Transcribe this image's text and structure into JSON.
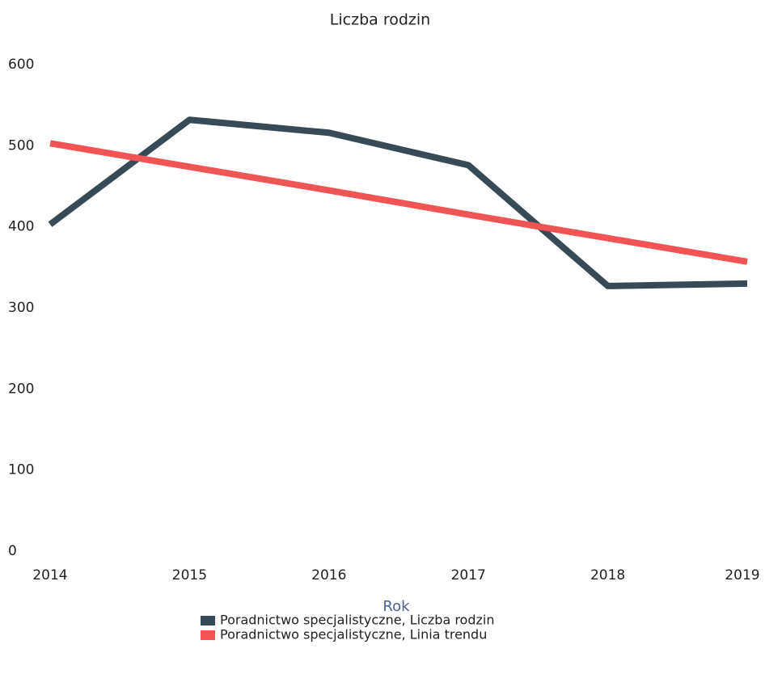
{
  "chart_data": {
    "type": "line",
    "title": "Liczba rodzin",
    "x_label": "Rok",
    "x": [
      2014,
      2015,
      2016,
      2017,
      2018,
      2019
    ],
    "xlim": [
      2014,
      2019
    ],
    "xticks": [
      2014,
      2015,
      2016,
      2017,
      2018,
      2019
    ],
    "ylim": [
      0,
      600
    ],
    "yticks": [
      0,
      100,
      200,
      300,
      400,
      500,
      600
    ],
    "grid": false,
    "legend": "bottom",
    "series": [
      {
        "name": "Poradnictwo specjalistyczne, Liczba rodzin",
        "color": "#374a56",
        "values": [
          403,
          532,
          516,
          476,
          327,
          330
        ]
      },
      {
        "name": "Poradnictwo specjalistyczne, Linia trendu",
        "color": "#f05454",
        "values": [
          503,
          474,
          445,
          415,
          386,
          357
        ]
      }
    ]
  }
}
